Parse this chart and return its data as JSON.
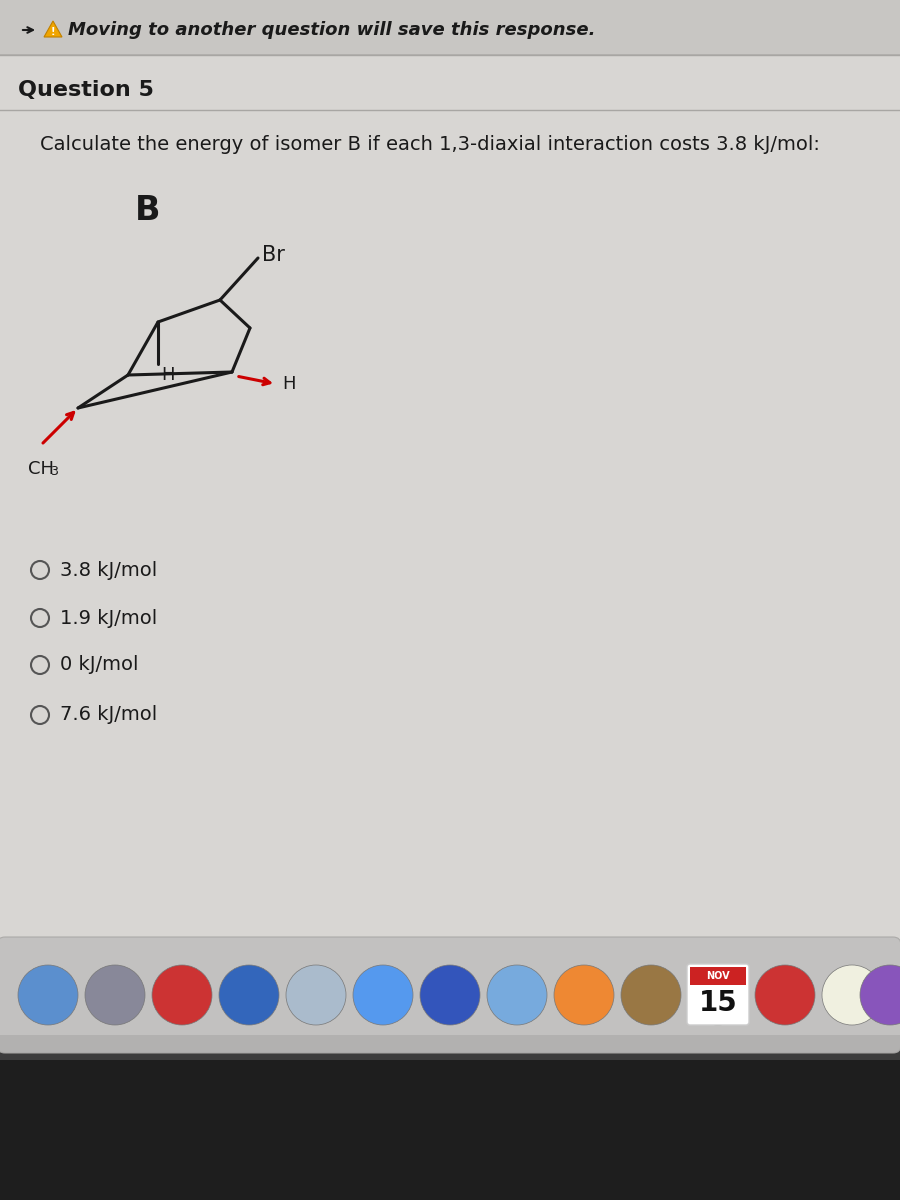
{
  "bg_color": "#d8d6d3",
  "bg_main": "#d8d6d3",
  "warning_color": "#f5a623",
  "header_text": "Moving to another question will save this response.",
  "question_label": "Question 5",
  "question_text": "Calculate the energy of isomer B if each 1,3-diaxial interaction costs 3.8 kJ/mol:",
  "isomer_label": "B",
  "choices": [
    "3.8 kJ/mol",
    "1.9 kJ/mol",
    "0 kJ/mol",
    "7.6 kJ/mol"
  ],
  "arrow_color": "#cc0000",
  "line_color": "#1a1a1a",
  "text_color": "#1a1a1a",
  "radio_color": "#555555",
  "choice_fontsize": 14,
  "question_fontsize": 14,
  "header_fontsize": 13,
  "question_label_fontsize": 16
}
